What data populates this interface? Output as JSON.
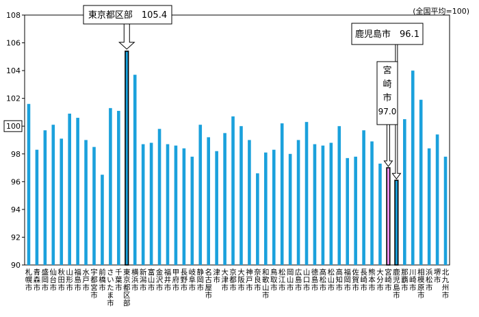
{
  "chart_data": {
    "type": "bar",
    "title": "",
    "note": "(全国平均=100)",
    "xlabel": "",
    "ylabel": "",
    "ylim": [
      90,
      108
    ],
    "yticks": [
      90,
      92,
      94,
      96,
      98,
      100,
      102,
      104,
      106,
      108
    ],
    "boxed_ytick": "100",
    "categories": [
      "札幌市",
      "青森市",
      "盛岡市",
      "仙台市",
      "秋田市",
      "山形市",
      "福島市",
      "水戸市",
      "宇都宮市",
      "前橋市",
      "さいたま市",
      "千葉市",
      "東京都区部",
      "横浜市",
      "新潟市",
      "富山市",
      "金沢市",
      "福井市",
      "甲府市",
      "長野市",
      "岐阜市",
      "静岡市",
      "名古屋市",
      "津市",
      "大津市",
      "京都市",
      "大阪市",
      "神戸市",
      "奈良市",
      "和歌山市",
      "鳥取市",
      "松江市",
      "岡山市",
      "広島市",
      "山口市",
      "徳島市",
      "高松市",
      "松山市",
      "高知市",
      "福岡市",
      "佐賀市",
      "長崎市",
      "熊本市",
      "大分市",
      "宮崎市",
      "鹿児島市",
      "那覇市",
      "川崎市",
      "相模原市",
      "浜松市",
      "堺市",
      "北九州市"
    ],
    "values": [
      101.6,
      98.3,
      99.7,
      100.1,
      99.1,
      100.9,
      100.6,
      99.0,
      98.5,
      96.5,
      101.3,
      101.1,
      105.4,
      103.7,
      98.7,
      98.8,
      99.8,
      98.7,
      98.6,
      98.4,
      97.8,
      100.1,
      99.2,
      98.2,
      99.5,
      100.7,
      100.0,
      99.0,
      96.6,
      98.1,
      98.3,
      100.2,
      98.0,
      99.0,
      100.3,
      98.7,
      98.6,
      98.8,
      100.0,
      97.7,
      97.8,
      99.7,
      98.9,
      97.3,
      97.0,
      96.1,
      100.5,
      104.0,
      101.9,
      98.4,
      99.4,
      97.8
    ],
    "highlight": {
      "東京都区部": "outlined",
      "宮崎市": "pink",
      "鹿児島市": "outlined"
    },
    "colors": {
      "bar": "#1ba1dc",
      "highlight": "#f090f0",
      "outline": "#000000"
    },
    "annotations": [
      {
        "label": "東京都区部",
        "value": "105.4"
      },
      {
        "label": "鹿児島市",
        "value": "96.1"
      },
      {
        "label": "宮崎市",
        "value": "97.0"
      }
    ]
  }
}
